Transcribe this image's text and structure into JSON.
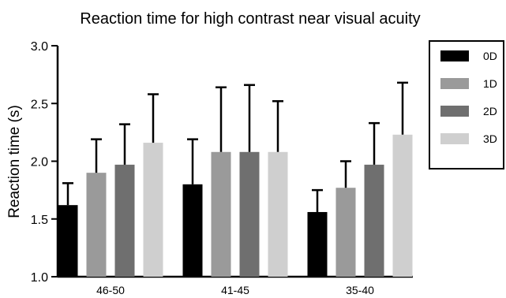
{
  "chart_data": {
    "type": "bar",
    "title": "Reaction time for high contrast near visual acuity",
    "xlabel": "",
    "ylabel": "Reaction time (s)",
    "ylim": [
      1.0,
      3.0
    ],
    "yticks": [
      "1.0",
      "1.5",
      "2.0",
      "2.5",
      "3.0"
    ],
    "categories": [
      "46-50",
      "41-45",
      "35-40"
    ],
    "legend_position": "right",
    "grid": false,
    "error_bars": "upper",
    "series": [
      {
        "name": "0D",
        "color": "#000000",
        "values": [
          1.62,
          1.8,
          1.56
        ],
        "errors": [
          0.19,
          0.39,
          0.19
        ]
      },
      {
        "name": "1D",
        "color": "#9a9a9a",
        "values": [
          1.9,
          2.08,
          1.77
        ],
        "errors": [
          0.29,
          0.56,
          0.23
        ]
      },
      {
        "name": "2D",
        "color": "#6f6f6f",
        "values": [
          1.97,
          2.08,
          1.97
        ],
        "errors": [
          0.35,
          0.58,
          0.36
        ]
      },
      {
        "name": "3D",
        "color": "#cfcfcf",
        "values": [
          2.16,
          2.08,
          2.23
        ],
        "errors": [
          0.42,
          0.44,
          0.45
        ]
      }
    ]
  }
}
